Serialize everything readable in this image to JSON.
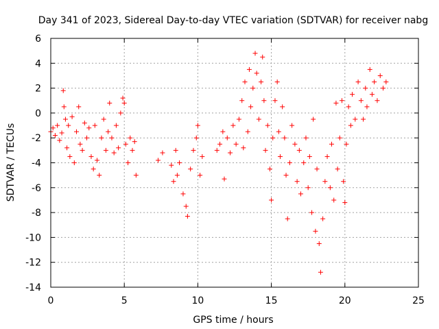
{
  "chart_data": {
    "type": "scatter",
    "title": "Day 341 of 2023, Sidereal Day-to-day VTEC variation (SDTVAR) for receiver nabg",
    "xlabel": "GPS time / hours",
    "ylabel": "SDTVAR / TECUs",
    "xlim": [
      0,
      25
    ],
    "ylim": [
      -14,
      6
    ],
    "xticks": [
      0,
      5,
      10,
      15,
      20,
      25
    ],
    "yticks": [
      -14,
      -12,
      -10,
      -8,
      -6,
      -4,
      -2,
      0,
      2,
      4,
      6
    ],
    "grid": true,
    "marker": "+",
    "colors": {
      "points": "#ff0000",
      "grid": "#a0a0a0",
      "axes": "#000000"
    },
    "series": [
      {
        "name": "SDTVAR",
        "points": [
          [
            0.0,
            -1.5
          ],
          [
            0.15,
            -1.2
          ],
          [
            0.3,
            -1.8
          ],
          [
            0.45,
            -1.0
          ],
          [
            0.6,
            -2.2
          ],
          [
            0.75,
            -1.6
          ],
          [
            0.85,
            1.8
          ],
          [
            0.9,
            0.5
          ],
          [
            1.0,
            -0.5
          ],
          [
            1.1,
            -2.8
          ],
          [
            1.2,
            -1.0
          ],
          [
            1.3,
            -3.5
          ],
          [
            1.45,
            -0.3
          ],
          [
            1.6,
            -4.0
          ],
          [
            1.75,
            -1.5
          ],
          [
            1.9,
            0.5
          ],
          [
            2.0,
            -2.5
          ],
          [
            2.15,
            -3.0
          ],
          [
            2.3,
            -0.8
          ],
          [
            2.45,
            -2.0
          ],
          [
            2.6,
            -1.2
          ],
          [
            2.75,
            -3.5
          ],
          [
            2.9,
            -4.5
          ],
          [
            3.0,
            -1.0
          ],
          [
            3.15,
            -3.8
          ],
          [
            3.3,
            -5.0
          ],
          [
            3.45,
            -2.0
          ],
          [
            3.6,
            -0.5
          ],
          [
            3.75,
            -3.0
          ],
          [
            3.9,
            -1.5
          ],
          [
            4.0,
            0.8
          ],
          [
            4.15,
            -2.0
          ],
          [
            4.3,
            -3.2
          ],
          [
            4.45,
            -1.0
          ],
          [
            4.6,
            -2.8
          ],
          [
            4.75,
            0.0
          ],
          [
            4.9,
            1.2
          ],
          [
            5.0,
            0.8
          ],
          [
            5.1,
            -2.5
          ],
          [
            5.25,
            -4.0
          ],
          [
            5.4,
            -2.0
          ],
          [
            5.55,
            -3.0
          ],
          [
            5.7,
            -2.3
          ],
          [
            5.8,
            -5.0
          ],
          [
            7.3,
            -3.8
          ],
          [
            7.6,
            -3.2
          ],
          [
            8.2,
            -4.2
          ],
          [
            8.35,
            -5.5
          ],
          [
            8.5,
            -3.0
          ],
          [
            8.6,
            -5.0
          ],
          [
            8.75,
            -4.0
          ],
          [
            9.0,
            -6.5
          ],
          [
            9.2,
            -7.5
          ],
          [
            9.3,
            -8.3
          ],
          [
            9.5,
            -4.5
          ],
          [
            9.7,
            -3.0
          ],
          [
            9.9,
            -2.0
          ],
          [
            10.0,
            -1.0
          ],
          [
            10.15,
            -5.0
          ],
          [
            10.3,
            -3.5
          ],
          [
            11.3,
            -3.0
          ],
          [
            11.5,
            -2.5
          ],
          [
            11.7,
            -1.5
          ],
          [
            11.8,
            -5.3
          ],
          [
            12.0,
            -2.0
          ],
          [
            12.2,
            -3.2
          ],
          [
            12.4,
            -1.0
          ],
          [
            12.6,
            -2.5
          ],
          [
            12.8,
            -0.5
          ],
          [
            13.0,
            1.0
          ],
          [
            13.1,
            -2.8
          ],
          [
            13.2,
            2.5
          ],
          [
            13.4,
            -1.5
          ],
          [
            13.5,
            3.5
          ],
          [
            13.6,
            0.5
          ],
          [
            13.75,
            2.0
          ],
          [
            13.9,
            4.8
          ],
          [
            14.0,
            3.2
          ],
          [
            14.15,
            -0.5
          ],
          [
            14.3,
            2.5
          ],
          [
            14.4,
            4.5
          ],
          [
            14.5,
            1.0
          ],
          [
            14.6,
            -3.0
          ],
          [
            14.75,
            -1.0
          ],
          [
            14.9,
            -4.5
          ],
          [
            15.0,
            -7.0
          ],
          [
            15.1,
            -2.0
          ],
          [
            15.25,
            1.0
          ],
          [
            15.4,
            2.5
          ],
          [
            15.5,
            -1.5
          ],
          [
            15.6,
            -3.5
          ],
          [
            15.75,
            0.5
          ],
          [
            15.9,
            -2.0
          ],
          [
            16.0,
            -5.0
          ],
          [
            16.1,
            -8.5
          ],
          [
            16.25,
            -4.0
          ],
          [
            16.4,
            -1.0
          ],
          [
            16.6,
            -2.5
          ],
          [
            16.75,
            -5.5
          ],
          [
            16.9,
            -3.0
          ],
          [
            17.0,
            -6.5
          ],
          [
            17.2,
            -4.0
          ],
          [
            17.35,
            -2.0
          ],
          [
            17.5,
            -6.0
          ],
          [
            17.6,
            -3.5
          ],
          [
            17.75,
            -8.0
          ],
          [
            17.85,
            -0.5
          ],
          [
            18.0,
            -9.5
          ],
          [
            18.1,
            -4.5
          ],
          [
            18.25,
            -10.5
          ],
          [
            18.35,
            -12.8
          ],
          [
            18.5,
            -8.5
          ],
          [
            18.65,
            -5.5
          ],
          [
            18.8,
            -3.5
          ],
          [
            19.0,
            -6.0
          ],
          [
            19.1,
            -2.5
          ],
          [
            19.25,
            -7.0
          ],
          [
            19.4,
            0.8
          ],
          [
            19.5,
            -4.5
          ],
          [
            19.65,
            -2.0
          ],
          [
            19.8,
            1.0
          ],
          [
            19.9,
            -5.5
          ],
          [
            20.0,
            -7.2
          ],
          [
            20.1,
            -2.5
          ],
          [
            20.25,
            0.5
          ],
          [
            20.4,
            -1.0
          ],
          [
            20.5,
            1.5
          ],
          [
            20.7,
            -0.5
          ],
          [
            20.9,
            2.5
          ],
          [
            21.1,
            1.0
          ],
          [
            21.25,
            -0.5
          ],
          [
            21.4,
            2.0
          ],
          [
            21.5,
            0.5
          ],
          [
            21.7,
            3.5
          ],
          [
            21.85,
            1.5
          ],
          [
            22.0,
            2.5
          ],
          [
            22.2,
            1.0
          ],
          [
            22.4,
            3.0
          ],
          [
            22.6,
            2.0
          ],
          [
            22.8,
            2.5
          ]
        ]
      }
    ]
  }
}
